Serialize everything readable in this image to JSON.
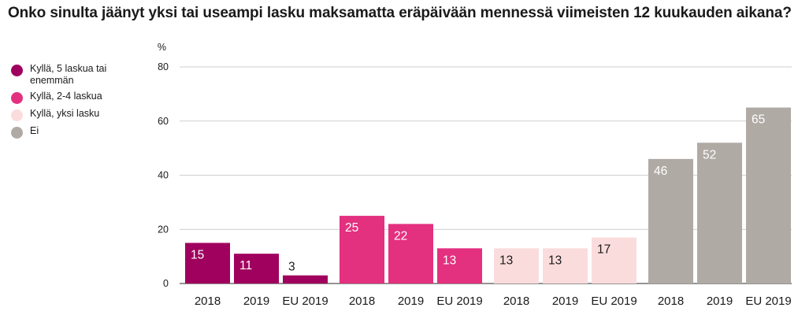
{
  "chart_data": {
    "type": "bar",
    "title": "Onko sinulta jäänyt yksi tai useampi lasku maksamatta eräpäivään mennessä viimeisten 12 kuukauden aikana?",
    "ylabel": "%",
    "ylim": [
      0,
      80
    ],
    "yticks": [
      "0",
      "20",
      "40",
      "60",
      "80"
    ],
    "grid": true,
    "legend_position": "left",
    "groups": [
      {
        "name": "Kyllä, 5 laskua tai enemmän",
        "color": "#a0005e",
        "label_color": "#ffffff",
        "categories": [
          "2018",
          "2019",
          "EU 2019"
        ],
        "values": [
          15,
          11,
          3
        ]
      },
      {
        "name": "Kyllä, 2-4 laskua",
        "color": "#e3307f",
        "label_color": "#ffffff",
        "categories": [
          "2018",
          "2019",
          "EU 2019"
        ],
        "values": [
          25,
          22,
          13
        ]
      },
      {
        "name": "Kyllä, yksi lasku",
        "color": "#fbdcdc",
        "label_color": "#1a1a1a",
        "categories": [
          "2018",
          "2019",
          "EU 2019"
        ],
        "values": [
          13,
          13,
          17
        ]
      },
      {
        "name": "Ei",
        "color": "#b0aaa5",
        "label_color": "#ffffff",
        "categories": [
          "2018",
          "2019",
          "EU 2019"
        ],
        "values": [
          46,
          52,
          65
        ]
      }
    ]
  }
}
